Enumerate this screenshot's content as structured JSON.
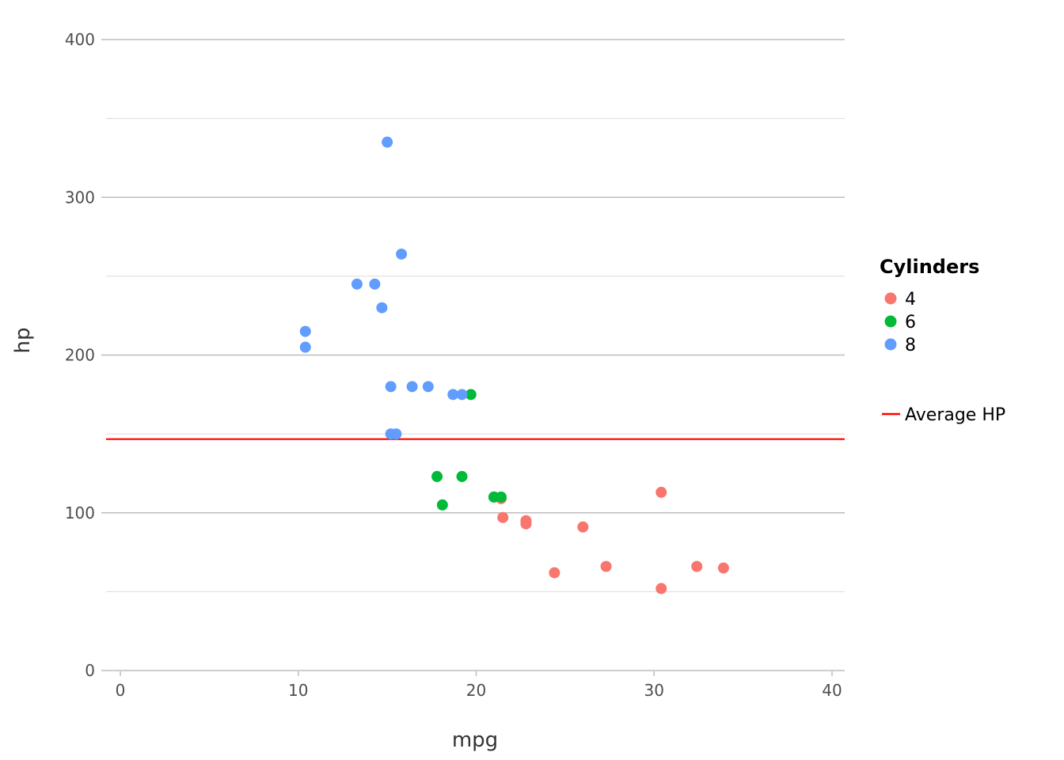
{
  "chart_data": {
    "type": "scatter",
    "title": "",
    "xlabel": "mpg",
    "ylabel": "hp",
    "xlim": [
      0,
      40
    ],
    "ylim": [
      0,
      400
    ],
    "x_ticks": [
      "0",
      "10",
      "20",
      "30",
      "40"
    ],
    "y_ticks": [
      "0",
      "100",
      "200",
      "300",
      "400"
    ],
    "grid": true,
    "legend_title": "Cylinders",
    "legend_position": "right",
    "series": [
      {
        "name": "4",
        "color": "#F8766D",
        "points": [
          [
            22.8,
            93
          ],
          [
            24.4,
            62
          ],
          [
            22.8,
            95
          ],
          [
            32.4,
            66
          ],
          [
            30.4,
            52
          ],
          [
            33.9,
            65
          ],
          [
            21.5,
            97
          ],
          [
            27.3,
            66
          ],
          [
            26.0,
            91
          ],
          [
            30.4,
            113
          ],
          [
            21.4,
            109
          ]
        ]
      },
      {
        "name": "6",
        "color": "#00BA38",
        "points": [
          [
            21.0,
            110
          ],
          [
            21.0,
            110
          ],
          [
            21.4,
            110
          ],
          [
            18.1,
            105
          ],
          [
            19.2,
            123
          ],
          [
            17.8,
            123
          ],
          [
            19.7,
            175
          ]
        ]
      },
      {
        "name": "8",
        "color": "#619CFF",
        "points": [
          [
            18.7,
            175
          ],
          [
            14.3,
            245
          ],
          [
            16.4,
            180
          ],
          [
            17.3,
            180
          ],
          [
            15.2,
            180
          ],
          [
            10.4,
            205
          ],
          [
            10.4,
            215
          ],
          [
            14.7,
            230
          ],
          [
            15.5,
            150
          ],
          [
            15.2,
            150
          ],
          [
            13.3,
            245
          ],
          [
            19.2,
            175
          ],
          [
            15.8,
            264
          ],
          [
            15.0,
            335
          ]
        ]
      }
    ],
    "reference_lines": [
      {
        "name": "Average HP",
        "orientation": "horizontal",
        "value": 146.7,
        "color": "#FF0000"
      }
    ]
  }
}
